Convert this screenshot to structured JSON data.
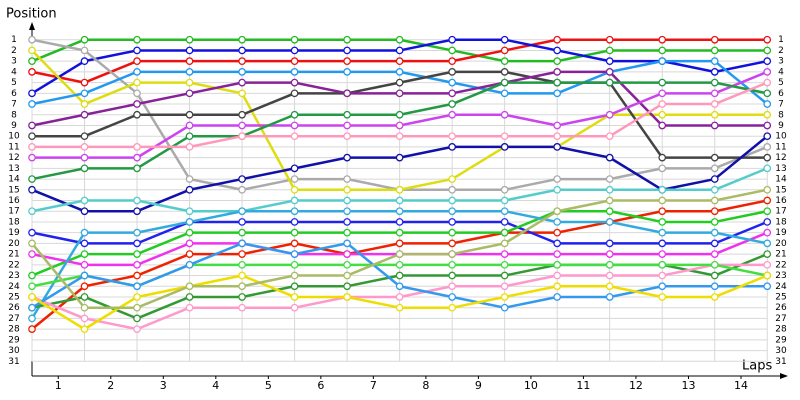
{
  "chart_data": {
    "type": "line",
    "x_label": "Laps",
    "y_label": "Position",
    "y_reversed": true,
    "grid": true,
    "x": [
      0,
      1,
      2,
      3,
      4,
      5,
      6,
      7,
      8,
      9,
      10,
      11,
      12,
      13,
      14
    ],
    "xlim": [
      0,
      14.3
    ],
    "xticks": [
      {
        "value": 0.5,
        "label": "1"
      },
      {
        "value": 1.5,
        "label": "2"
      },
      {
        "value": 2.5,
        "label": "3"
      },
      {
        "value": 3.5,
        "label": "4"
      },
      {
        "value": 4.5,
        "label": "5"
      },
      {
        "value": 5.5,
        "label": "6"
      },
      {
        "value": 6.5,
        "label": "7"
      },
      {
        "value": 7.5,
        "label": "8"
      },
      {
        "value": 8.5,
        "label": "9"
      },
      {
        "value": 9.5,
        "label": "10"
      },
      {
        "value": 10.5,
        "label": "11"
      },
      {
        "value": 11.5,
        "label": "12"
      },
      {
        "value": 12.5,
        "label": "13"
      },
      {
        "value": 13.5,
        "label": "14"
      }
    ],
    "ylim": [
      0,
      32
    ],
    "yticks": [
      1,
      2,
      3,
      4,
      5,
      6,
      7,
      8,
      9,
      10,
      11,
      12,
      13,
      14,
      15,
      16,
      17,
      18,
      19,
      20,
      21,
      22,
      23,
      24,
      25,
      26,
      27,
      28,
      29,
      30,
      31
    ],
    "series": [
      {
        "color": "#22bb22",
        "values": [
          3,
          1,
          1,
          1,
          1,
          1,
          1,
          1,
          2,
          3,
          3,
          2,
          2,
          2,
          2
        ]
      },
      {
        "color": "#ee1111",
        "values": [
          4,
          5,
          3,
          3,
          3,
          3,
          3,
          3,
          3,
          2,
          1,
          1,
          1,
          1,
          1
        ]
      },
      {
        "color": "#1111dd",
        "values": [
          6,
          3,
          2,
          2,
          2,
          2,
          2,
          2,
          1,
          1,
          2,
          3,
          3,
          4,
          3
        ]
      },
      {
        "color": "#aaaaaa",
        "values": [
          1,
          2,
          6,
          14,
          15,
          14,
          14,
          15,
          15,
          15,
          14,
          14,
          13,
          13,
          11
        ]
      },
      {
        "color": "#dddd11",
        "values": [
          2,
          7,
          5,
          5,
          6,
          15,
          15,
          15,
          14,
          11,
          11,
          8,
          8,
          8,
          8
        ]
      },
      {
        "color": "#2299ee",
        "values": [
          7,
          6,
          4,
          4,
          4,
          4,
          4,
          4,
          5,
          6,
          6,
          4,
          3,
          3,
          7
        ]
      },
      {
        "color": "#444444",
        "values": [
          10,
          10,
          8,
          8,
          8,
          6,
          6,
          5,
          4,
          4,
          5,
          5,
          12,
          12,
          12
        ]
      },
      {
        "color": "#882299",
        "values": [
          9,
          8,
          7,
          6,
          5,
          5,
          6,
          6,
          6,
          5,
          4,
          4,
          9,
          9,
          9
        ]
      },
      {
        "color": "#cc44ee",
        "values": [
          12,
          12,
          12,
          9,
          9,
          9,
          9,
          9,
          8,
          8,
          9,
          8,
          6,
          6,
          4
        ]
      },
      {
        "color": "#1111aa",
        "values": [
          15,
          17,
          17,
          15,
          14,
          13,
          12,
          12,
          11,
          11,
          11,
          12,
          15,
          14,
          10
        ]
      },
      {
        "color": "#229944",
        "values": [
          14,
          13,
          13,
          10,
          10,
          8,
          8,
          8,
          7,
          5,
          5,
          5,
          5,
          5,
          6
        ]
      },
      {
        "color": "#ff99bb",
        "values": [
          11,
          11,
          11,
          11,
          10,
          10,
          10,
          10,
          10,
          10,
          10,
          10,
          7,
          7,
          5
        ]
      },
      {
        "color": "#55cccc",
        "values": [
          17,
          16,
          16,
          17,
          17,
          16,
          16,
          16,
          16,
          16,
          15,
          15,
          15,
          15,
          13
        ]
      },
      {
        "color": "#ee2200",
        "values": [
          28,
          24,
          23,
          21,
          21,
          20,
          21,
          20,
          20,
          19,
          19,
          18,
          17,
          17,
          16
        ]
      },
      {
        "color": "#2222ee",
        "values": [
          19,
          20,
          20,
          18,
          18,
          18,
          18,
          18,
          18,
          18,
          20,
          20,
          20,
          20,
          18
        ]
      },
      {
        "color": "#22cc22",
        "values": [
          23,
          21,
          21,
          19,
          19,
          19,
          19,
          19,
          19,
          19,
          17,
          17,
          18,
          18,
          17
        ]
      },
      {
        "color": "#ee33ee",
        "values": [
          21,
          22,
          22,
          20,
          20,
          21,
          21,
          21,
          21,
          21,
          21,
          21,
          21,
          21,
          19
        ]
      },
      {
        "color": "#33aadd",
        "values": [
          27,
          19,
          19,
          18,
          17,
          17,
          17,
          17,
          17,
          17,
          18,
          18,
          19,
          19,
          20
        ]
      },
      {
        "color": "#339933",
        "values": [
          26,
          25,
          27,
          25,
          25,
          24,
          24,
          23,
          23,
          23,
          22,
          22,
          22,
          23,
          21
        ]
      },
      {
        "color": "#ff99cc",
        "values": [
          25,
          27,
          28,
          26,
          26,
          26,
          25,
          25,
          24,
          24,
          23,
          23,
          23,
          22,
          22
        ]
      },
      {
        "color": "#44dd44",
        "values": [
          24,
          23,
          24,
          22,
          22,
          22,
          22,
          22,
          22,
          22,
          22,
          22,
          22,
          22,
          23
        ]
      },
      {
        "color": "#3399ee",
        "values": [
          26,
          23,
          24,
          22,
          20,
          21,
          20,
          24,
          25,
          26,
          25,
          25,
          24,
          24,
          24
        ]
      },
      {
        "color": "#eedd00",
        "values": [
          25,
          28,
          25,
          24,
          23,
          25,
          25,
          26,
          26,
          25,
          24,
          24,
          25,
          25,
          23
        ]
      },
      {
        "color": "#aabb66",
        "values": [
          20,
          26,
          26,
          24,
          24,
          23,
          23,
          21,
          21,
          20,
          17,
          16,
          16,
          16,
          15
        ]
      }
    ]
  }
}
